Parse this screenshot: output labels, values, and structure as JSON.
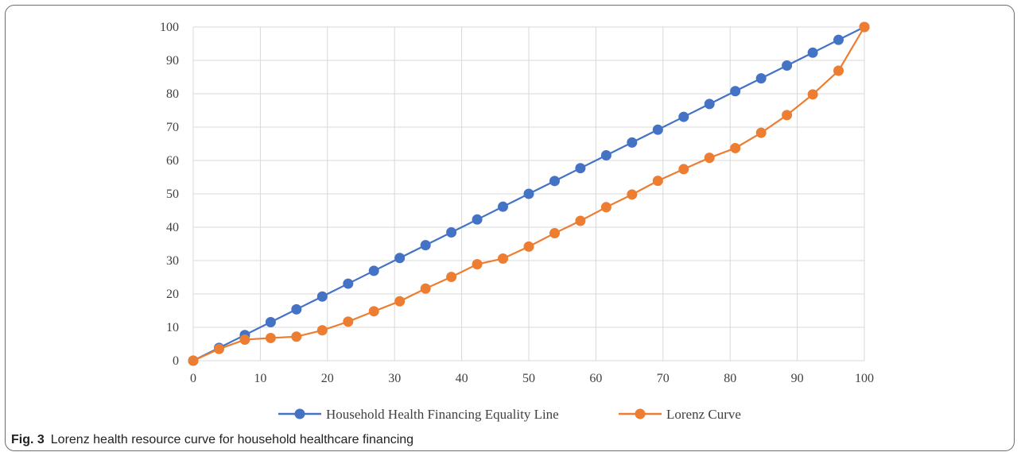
{
  "caption": {
    "label": "Fig. 3",
    "text": "Lorenz health resource curve for household healthcare financing"
  },
  "chart_data": {
    "type": "line",
    "title": "",
    "xlabel": "",
    "ylabel": "",
    "xlim": [
      0,
      100
    ],
    "ylim": [
      0,
      100
    ],
    "x_ticks": [
      "0",
      "10",
      "20",
      "30",
      "40",
      "50",
      "60",
      "70",
      "80",
      "90",
      "100"
    ],
    "y_ticks": [
      "0",
      "10",
      "20",
      "30",
      "40",
      "50",
      "60",
      "70",
      "80",
      "90",
      "100"
    ],
    "grid": true,
    "legend_position": "bottom",
    "x": [
      0,
      3.85,
      7.69,
      11.54,
      15.38,
      19.23,
      23.08,
      26.92,
      30.77,
      34.62,
      38.46,
      42.31,
      46.15,
      50,
      53.85,
      57.69,
      61.54,
      65.38,
      69.23,
      73.08,
      76.92,
      80.77,
      84.62,
      88.46,
      92.31,
      96.15,
      100
    ],
    "series": [
      {
        "name": "Household Health Financing Equality Line",
        "color": "#4472C4",
        "values": [
          0,
          3.85,
          7.69,
          11.54,
          15.38,
          19.23,
          23.08,
          26.92,
          30.77,
          34.62,
          38.46,
          42.31,
          46.15,
          50,
          53.85,
          57.69,
          61.54,
          65.38,
          69.23,
          73.08,
          76.92,
          80.77,
          84.62,
          88.46,
          92.31,
          96.15,
          100
        ]
      },
      {
        "name": "Lorenz Curve",
        "color": "#ED7D31",
        "values": [
          0,
          3.5,
          6.3,
          6.8,
          7.2,
          9.1,
          11.7,
          14.8,
          17.8,
          21.6,
          25.1,
          28.9,
          30.6,
          34.2,
          38.2,
          41.9,
          46.0,
          49.8,
          53.9,
          57.4,
          60.8,
          63.7,
          68.3,
          73.6,
          79.8,
          86.9,
          100
        ]
      }
    ]
  }
}
